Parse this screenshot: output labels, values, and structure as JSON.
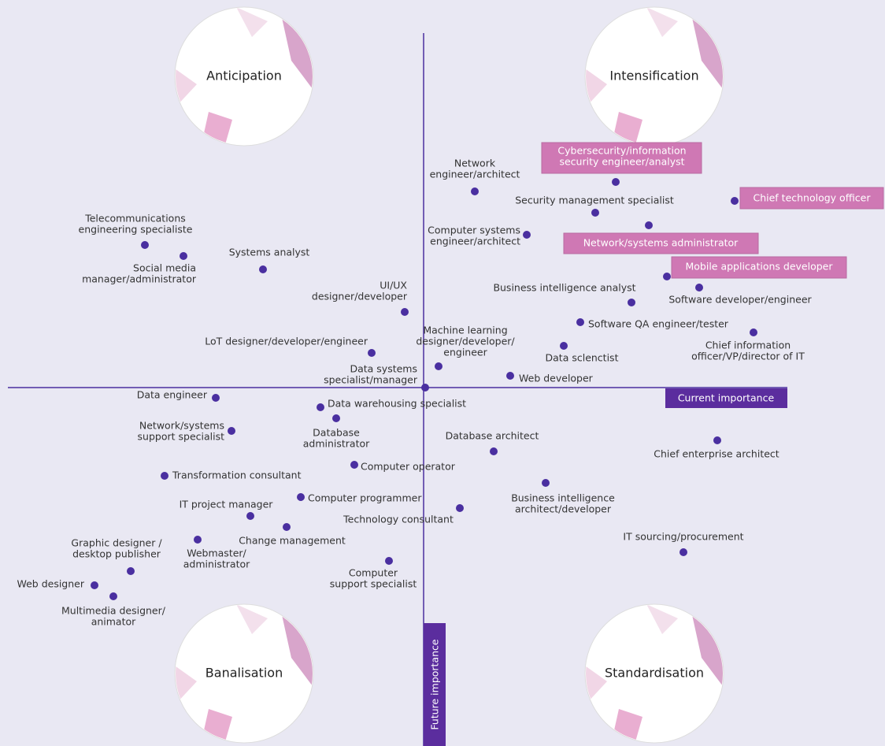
{
  "quadrants": [
    "Anticipation",
    "Intensification",
    "Banalisation",
    "Standardisation"
  ],
  "axes": {
    "horizontal": "Current importance",
    "vertical": "Future importance"
  },
  "nodes": [
    {
      "label": [
        "Network",
        "engineer/architect"
      ]
    },
    {
      "label": [
        "Cybersecurity/information",
        "security engineer/analyst"
      ]
    },
    {
      "label": [
        "Security management specialist"
      ]
    },
    {
      "label": [
        "Chief technology officer"
      ]
    },
    {
      "label": [
        "Network/systems administrator"
      ]
    },
    {
      "label": [
        "Computer systems",
        "engineer/architect"
      ]
    },
    {
      "label": [
        "Mobile applications developer"
      ]
    },
    {
      "label": [
        "Business intelligence analyst"
      ]
    },
    {
      "label": [
        "Software developer/engineer"
      ]
    },
    {
      "label": [
        "Software QA engineer/tester"
      ]
    },
    {
      "label": [
        "Chief information",
        "officer/VP/director of IT"
      ]
    },
    {
      "label": [
        "Data sclenctist"
      ]
    },
    {
      "label": [
        "Web developer"
      ]
    },
    {
      "label": [
        "Machine learning",
        "designer/developer/",
        "engineer"
      ]
    },
    {
      "label": [
        "UI/UX",
        "designer/developer"
      ]
    },
    {
      "label": [
        "LoT designer/developer/engineer"
      ]
    },
    {
      "label": [
        "Data systems",
        "specialist/manager"
      ]
    },
    {
      "label": [
        "Systems analyst"
      ]
    },
    {
      "label": [
        "Telecommunications",
        "engineering specialiste"
      ]
    },
    {
      "label": [
        "Social media",
        "manager/administrator"
      ]
    },
    {
      "label": [
        "Data engineer"
      ]
    },
    {
      "label": [
        "Network/systems",
        "support specialist"
      ]
    },
    {
      "label": [
        "Data warehousing specialist"
      ]
    },
    {
      "label": [
        "Database",
        "administrator"
      ]
    },
    {
      "label": [
        "Database architect"
      ]
    },
    {
      "label": [
        "Chief enterprise architect"
      ]
    },
    {
      "label": [
        "Computer operator"
      ]
    },
    {
      "label": [
        "Transformation consultant"
      ]
    },
    {
      "label": [
        "Computer programmer"
      ]
    },
    {
      "label": [
        "Business intelligence",
        "architect/developer"
      ]
    },
    {
      "label": [
        "Technology consultant"
      ]
    },
    {
      "label": [
        "IT project manager"
      ]
    },
    {
      "label": [
        "Change management"
      ]
    },
    {
      "label": [
        "Graphic designer /",
        "desktop publisher"
      ]
    },
    {
      "label": [
        "Webmaster/",
        "administrator"
      ]
    },
    {
      "label": [
        "IT sourcing/procurement"
      ]
    },
    {
      "label": [
        "Computer",
        "support specialist"
      ]
    },
    {
      "label": [
        "Web designer"
      ]
    },
    {
      "label": [
        "Multimedia designer/",
        "animator"
      ]
    }
  ]
}
